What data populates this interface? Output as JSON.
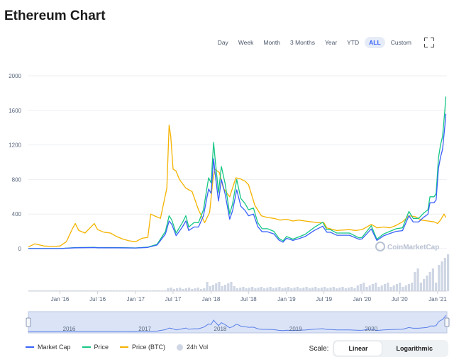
{
  "header": {
    "title": "Ethereum Chart"
  },
  "range_buttons": [
    "Day",
    "Week",
    "Month",
    "3 Months",
    "Year",
    "YTD",
    "ALL",
    "Custom"
  ],
  "active_range": "ALL",
  "fullscreen_icon": "fullscreen-icon",
  "watermark": "CoinMarketCap",
  "legend": [
    {
      "label": "Market Cap",
      "color": "#3861fb",
      "kind": "line"
    },
    {
      "label": "Price",
      "color": "#16c784",
      "kind": "line"
    },
    {
      "label": "Price (BTC)",
      "color": "#f5b300",
      "kind": "line"
    },
    {
      "label": "24h Vol",
      "color": "#cfd6e4",
      "kind": "dot"
    }
  ],
  "scale": {
    "label": "Scale:",
    "options": [
      "Linear",
      "Logarithmic"
    ],
    "active": "Linear"
  },
  "colors": {
    "market_cap": "#3861fb",
    "price": "#16c784",
    "price_btc": "#f5b300",
    "volume": "#cfd6e4",
    "navigator": "#dbe4f7"
  },
  "chart_data": {
    "type": "line",
    "title": "Ethereum Chart",
    "ylim": [
      0,
      2000
    ],
    "y_ticks": [
      0,
      400,
      800,
      1200,
      1600,
      2000
    ],
    "x_range": [
      "2015-08-01",
      "2021-02-15"
    ],
    "x_ticks": [
      {
        "label": "Jan '16",
        "date": "2016-01-01"
      },
      {
        "label": "Jul '16",
        "date": "2016-07-01"
      },
      {
        "label": "Jan '17",
        "date": "2017-01-01"
      },
      {
        "label": "Jul '17",
        "date": "2017-07-01"
      },
      {
        "label": "Jan '18",
        "date": "2018-01-01"
      },
      {
        "label": "Jul '18",
        "date": "2018-07-01"
      },
      {
        "label": "Jan '19",
        "date": "2019-01-01"
      },
      {
        "label": "Jul '19",
        "date": "2019-07-01"
      },
      {
        "label": "Jan '20",
        "date": "2020-01-01"
      },
      {
        "label": "Jul '20",
        "date": "2020-07-01"
      },
      {
        "label": "Jan '21",
        "date": "2021-01-01"
      }
    ],
    "navigator_labels": [
      {
        "label": "2016",
        "date": "2016-01-01"
      },
      {
        "label": "2017",
        "date": "2017-01-01"
      },
      {
        "label": "2018",
        "date": "2018-01-01"
      },
      {
        "label": "2019",
        "date": "2019-01-01"
      },
      {
        "label": "2020",
        "date": "2020-01-01"
      }
    ],
    "series": [
      {
        "name": "Price",
        "points": [
          [
            "2015-08-01",
            2
          ],
          [
            "2016-01-01",
            1
          ],
          [
            "2016-03-15",
            12
          ],
          [
            "2016-06-15",
            15
          ],
          [
            "2016-07-01",
            12
          ],
          [
            "2016-10-01",
            12
          ],
          [
            "2017-01-01",
            8
          ],
          [
            "2017-03-01",
            17
          ],
          [
            "2017-04-15",
            50
          ],
          [
            "2017-05-25",
            200
          ],
          [
            "2017-06-12",
            380
          ],
          [
            "2017-06-25",
            330
          ],
          [
            "2017-07-16",
            180
          ],
          [
            "2017-08-15",
            300
          ],
          [
            "2017-09-01",
            380
          ],
          [
            "2017-09-15",
            250
          ],
          [
            "2017-10-10",
            300
          ],
          [
            "2017-11-01",
            300
          ],
          [
            "2017-11-25",
            450
          ],
          [
            "2017-12-12",
            700
          ],
          [
            "2017-12-20",
            820
          ],
          [
            "2018-01-01",
            760
          ],
          [
            "2018-01-13",
            1230
          ],
          [
            "2018-01-20",
            1050
          ],
          [
            "2018-02-06",
            650
          ],
          [
            "2018-02-20",
            950
          ],
          [
            "2018-03-10",
            750
          ],
          [
            "2018-04-01",
            400
          ],
          [
            "2018-04-15",
            520
          ],
          [
            "2018-05-05",
            800
          ],
          [
            "2018-05-25",
            580
          ],
          [
            "2018-06-15",
            520
          ],
          [
            "2018-07-01",
            450
          ],
          [
            "2018-07-25",
            470
          ],
          [
            "2018-08-15",
            300
          ],
          [
            "2018-09-05",
            230
          ],
          [
            "2018-10-01",
            230
          ],
          [
            "2018-11-01",
            200
          ],
          [
            "2018-11-25",
            120
          ],
          [
            "2018-12-15",
            90
          ],
          [
            "2019-01-01",
            140
          ],
          [
            "2019-02-01",
            110
          ],
          [
            "2019-03-01",
            135
          ],
          [
            "2019-04-01",
            165
          ],
          [
            "2019-05-15",
            245
          ],
          [
            "2019-06-25",
            305
          ],
          [
            "2019-07-15",
            220
          ],
          [
            "2019-08-01",
            220
          ],
          [
            "2019-09-01",
            180
          ],
          [
            "2019-10-01",
            180
          ],
          [
            "2019-11-01",
            180
          ],
          [
            "2019-12-18",
            125
          ],
          [
            "2020-01-01",
            130
          ],
          [
            "2020-02-15",
            265
          ],
          [
            "2020-03-13",
            110
          ],
          [
            "2020-04-15",
            170
          ],
          [
            "2020-05-15",
            200
          ],
          [
            "2020-06-15",
            230
          ],
          [
            "2020-07-15",
            240
          ],
          [
            "2020-08-15",
            430
          ],
          [
            "2020-09-05",
            350
          ],
          [
            "2020-10-01",
            350
          ],
          [
            "2020-10-25",
            410
          ],
          [
            "2020-11-15",
            450
          ],
          [
            "2020-11-25",
            600
          ],
          [
            "2020-12-15",
            600
          ],
          [
            "2020-12-25",
            640
          ],
          [
            "2021-01-05",
            1050
          ],
          [
            "2021-01-15",
            1200
          ],
          [
            "2021-01-25",
            1300
          ],
          [
            "2021-02-05",
            1600
          ],
          [
            "2021-02-10",
            1760
          ]
        ]
      },
      {
        "name": "Market Cap",
        "points": [
          [
            "2015-08-01",
            1
          ],
          [
            "2016-01-01",
            1
          ],
          [
            "2016-03-15",
            10
          ],
          [
            "2016-06-15",
            12
          ],
          [
            "2016-07-01",
            10
          ],
          [
            "2016-10-01",
            10
          ],
          [
            "2017-01-01",
            7
          ],
          [
            "2017-03-01",
            14
          ],
          [
            "2017-04-15",
            42
          ],
          [
            "2017-05-25",
            170
          ],
          [
            "2017-06-12",
            320
          ],
          [
            "2017-06-25",
            280
          ],
          [
            "2017-07-16",
            150
          ],
          [
            "2017-08-15",
            250
          ],
          [
            "2017-09-01",
            320
          ],
          [
            "2017-09-15",
            210
          ],
          [
            "2017-10-10",
            250
          ],
          [
            "2017-11-01",
            250
          ],
          [
            "2017-11-25",
            380
          ],
          [
            "2017-12-12",
            590
          ],
          [
            "2017-12-20",
            690
          ],
          [
            "2018-01-01",
            640
          ],
          [
            "2018-01-13",
            1040
          ],
          [
            "2018-01-20",
            880
          ],
          [
            "2018-02-06",
            550
          ],
          [
            "2018-02-20",
            800
          ],
          [
            "2018-03-10",
            630
          ],
          [
            "2018-04-01",
            340
          ],
          [
            "2018-04-15",
            440
          ],
          [
            "2018-05-05",
            680
          ],
          [
            "2018-05-25",
            490
          ],
          [
            "2018-06-15",
            440
          ],
          [
            "2018-07-01",
            380
          ],
          [
            "2018-07-25",
            400
          ],
          [
            "2018-08-15",
            255
          ],
          [
            "2018-09-05",
            195
          ],
          [
            "2018-10-01",
            195
          ],
          [
            "2018-11-01",
            170
          ],
          [
            "2018-11-25",
            100
          ],
          [
            "2018-12-15",
            75
          ],
          [
            "2019-01-01",
            120
          ],
          [
            "2019-02-01",
            95
          ],
          [
            "2019-03-01",
            115
          ],
          [
            "2019-04-01",
            140
          ],
          [
            "2019-05-15",
            210
          ],
          [
            "2019-06-25",
            260
          ],
          [
            "2019-07-15",
            190
          ],
          [
            "2019-08-01",
            190
          ],
          [
            "2019-09-01",
            155
          ],
          [
            "2019-10-01",
            155
          ],
          [
            "2019-11-01",
            155
          ],
          [
            "2019-12-18",
            108
          ],
          [
            "2020-01-01",
            112
          ],
          [
            "2020-02-15",
            228
          ],
          [
            "2020-03-13",
            95
          ],
          [
            "2020-04-15",
            148
          ],
          [
            "2020-05-15",
            175
          ],
          [
            "2020-06-15",
            200
          ],
          [
            "2020-07-15",
            208
          ],
          [
            "2020-08-15",
            380
          ],
          [
            "2020-09-05",
            308
          ],
          [
            "2020-10-01",
            308
          ],
          [
            "2020-10-25",
            362
          ],
          [
            "2020-11-15",
            398
          ],
          [
            "2020-11-25",
            530
          ],
          [
            "2020-12-15",
            530
          ],
          [
            "2020-12-25",
            565
          ],
          [
            "2021-01-05",
            930
          ],
          [
            "2021-01-15",
            1060
          ],
          [
            "2021-01-25",
            1150
          ],
          [
            "2021-02-05",
            1420
          ],
          [
            "2021-02-10",
            1560
          ]
        ]
      },
      {
        "name": "Price (BTC)",
        "points": [
          [
            "2015-08-01",
            20
          ],
          [
            "2015-09-01",
            55
          ],
          [
            "2015-10-15",
            30
          ],
          [
            "2015-12-01",
            25
          ],
          [
            "2016-01-01",
            30
          ],
          [
            "2016-02-01",
            80
          ],
          [
            "2016-03-01",
            230
          ],
          [
            "2016-03-15",
            290
          ],
          [
            "2016-04-01",
            210
          ],
          [
            "2016-05-01",
            180
          ],
          [
            "2016-06-15",
            290
          ],
          [
            "2016-07-01",
            220
          ],
          [
            "2016-08-01",
            190
          ],
          [
            "2016-09-01",
            180
          ],
          [
            "2016-10-01",
            140
          ],
          [
            "2016-11-01",
            110
          ],
          [
            "2016-12-01",
            90
          ],
          [
            "2017-01-01",
            80
          ],
          [
            "2017-02-01",
            120
          ],
          [
            "2017-03-01",
            130
          ],
          [
            "2017-03-15",
            400
          ],
          [
            "2017-04-01",
            380
          ],
          [
            "2017-05-01",
            350
          ],
          [
            "2017-06-01",
            700
          ],
          [
            "2017-06-12",
            1430
          ],
          [
            "2017-06-20",
            1300
          ],
          [
            "2017-07-01",
            920
          ],
          [
            "2017-07-15",
            900
          ],
          [
            "2017-08-01",
            800
          ],
          [
            "2017-09-01",
            700
          ],
          [
            "2017-10-01",
            660
          ],
          [
            "2017-11-01",
            450
          ],
          [
            "2017-12-01",
            300
          ],
          [
            "2017-12-25",
            420
          ],
          [
            "2018-01-10",
            800
          ],
          [
            "2018-01-20",
            920
          ],
          [
            "2018-02-10",
            880
          ],
          [
            "2018-03-01",
            700
          ],
          [
            "2018-04-01",
            600
          ],
          [
            "2018-05-01",
            820
          ],
          [
            "2018-05-20",
            810
          ],
          [
            "2018-06-15",
            780
          ],
          [
            "2018-07-01",
            740
          ],
          [
            "2018-08-01",
            500
          ],
          [
            "2018-09-01",
            380
          ],
          [
            "2018-10-01",
            360
          ],
          [
            "2018-11-01",
            350
          ],
          [
            "2018-12-01",
            330
          ],
          [
            "2019-01-01",
            340
          ],
          [
            "2019-02-01",
            320
          ],
          [
            "2019-03-01",
            330
          ],
          [
            "2019-04-01",
            320
          ],
          [
            "2019-05-01",
            310
          ],
          [
            "2019-06-01",
            300
          ],
          [
            "2019-07-01",
            300
          ],
          [
            "2019-07-15",
            240
          ],
          [
            "2019-09-01",
            210
          ],
          [
            "2019-11-01",
            220
          ],
          [
            "2019-12-01",
            210
          ],
          [
            "2020-01-01",
            220
          ],
          [
            "2020-02-15",
            280
          ],
          [
            "2020-03-15",
            240
          ],
          [
            "2020-04-15",
            250
          ],
          [
            "2020-05-15",
            240
          ],
          [
            "2020-06-15",
            270
          ],
          [
            "2020-07-15",
            310
          ],
          [
            "2020-08-15",
            380
          ],
          [
            "2020-09-15",
            370
          ],
          [
            "2020-10-15",
            330
          ],
          [
            "2020-11-15",
            320
          ],
          [
            "2020-12-15",
            310
          ],
          [
            "2021-01-01",
            290
          ],
          [
            "2021-01-15",
            330
          ],
          [
            "2021-02-01",
            400
          ],
          [
            "2021-02-10",
            360
          ]
        ]
      }
    ]
  }
}
